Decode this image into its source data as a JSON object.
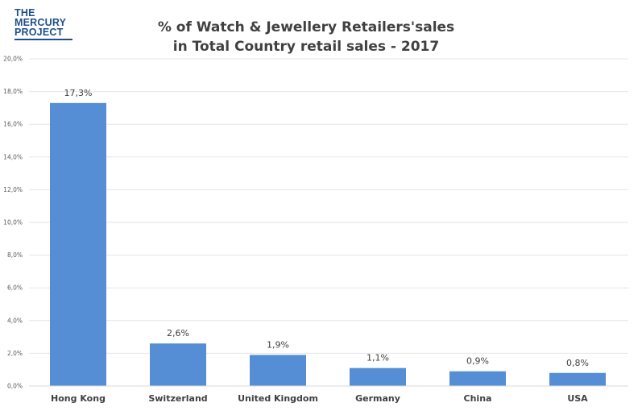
{
  "logo": {
    "line1": "THE",
    "line2": "MERCURY",
    "line3": "PROJECT",
    "color": "#1f4e8c"
  },
  "chart_data": {
    "type": "bar",
    "title_line1": "% of Watch & Jewellery Retailers'sales",
    "title_line2": "in Total Country retail sales - 2017",
    "categories": [
      "Hong Kong",
      "Switzerland",
      "United Kingdom",
      "Germany",
      "China",
      "USA"
    ],
    "values": [
      17.3,
      2.6,
      1.9,
      1.1,
      0.9,
      0.8
    ],
    "data_labels": [
      "17,3%",
      "2,6%",
      "1,9%",
      "1,1%",
      "0,9%",
      "0,8%"
    ],
    "ylim": [
      0,
      20
    ],
    "yticks": [
      0,
      2,
      4,
      6,
      8,
      10,
      12,
      14,
      16,
      18,
      20
    ],
    "ytick_labels": [
      "0,0%",
      "2,0%",
      "4,0%",
      "6,0%",
      "8,0%",
      "10,0%",
      "12,0%",
      "14,0%",
      "16,0%",
      "18,0%",
      "20,0%"
    ],
    "grid": true,
    "bar_color": "#558ed5",
    "grid_color": "#e6e6e6",
    "xlabel": "",
    "ylabel": ""
  }
}
